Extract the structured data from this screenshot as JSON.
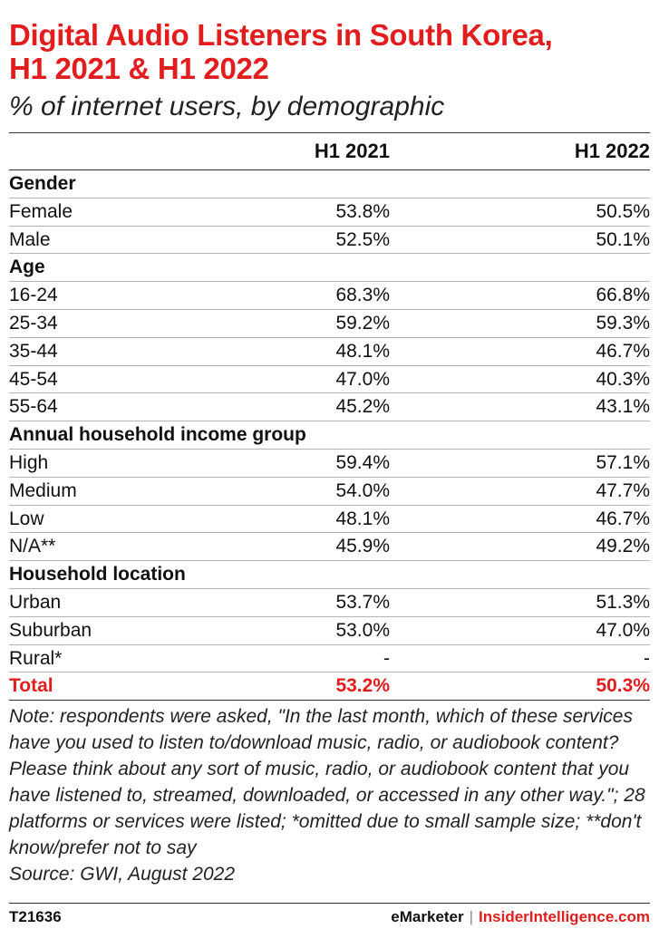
{
  "header": {
    "title_line1": "Digital Audio Listeners in South Korea,",
    "title_line2": "H1 2021 & H1 2022",
    "subtitle": "% of internet users, by demographic"
  },
  "colors": {
    "accent": "#e21d1d",
    "text": "#111111"
  },
  "chart_data": {
    "type": "table",
    "title": "Digital Audio Listeners in South Korea, H1 2021 & H1 2022",
    "subtitle": "% of internet users, by demographic",
    "columns": [
      "",
      "H1 2021",
      "H1 2022"
    ],
    "rows": [
      {
        "kind": "group",
        "label": "Gender"
      },
      {
        "kind": "row",
        "label": "Female",
        "h1_2021": "53.8%",
        "h1_2022": "50.5%"
      },
      {
        "kind": "row",
        "label": "Male",
        "h1_2021": "52.5%",
        "h1_2022": "50.1%"
      },
      {
        "kind": "group",
        "label": "Age"
      },
      {
        "kind": "row",
        "label": "16-24",
        "h1_2021": "68.3%",
        "h1_2022": "66.8%"
      },
      {
        "kind": "row",
        "label": "25-34",
        "h1_2021": "59.2%",
        "h1_2022": "59.3%"
      },
      {
        "kind": "row",
        "label": "35-44",
        "h1_2021": "48.1%",
        "h1_2022": "46.7%"
      },
      {
        "kind": "row",
        "label": "45-54",
        "h1_2021": "47.0%",
        "h1_2022": "40.3%"
      },
      {
        "kind": "row",
        "label": "55-64",
        "h1_2021": "45.2%",
        "h1_2022": "43.1%"
      },
      {
        "kind": "group",
        "label": "Annual household income group"
      },
      {
        "kind": "row",
        "label": "High",
        "h1_2021": "59.4%",
        "h1_2022": "57.1%"
      },
      {
        "kind": "row",
        "label": "Medium",
        "h1_2021": "54.0%",
        "h1_2022": "47.7%"
      },
      {
        "kind": "row",
        "label": "Low",
        "h1_2021": "48.1%",
        "h1_2022": "46.7%"
      },
      {
        "kind": "row",
        "label": "N/A**",
        "h1_2021": "45.9%",
        "h1_2022": "49.2%"
      },
      {
        "kind": "group",
        "label": "Household location"
      },
      {
        "kind": "row",
        "label": "Urban",
        "h1_2021": "53.7%",
        "h1_2022": "51.3%"
      },
      {
        "kind": "row",
        "label": "Suburban",
        "h1_2021": "53.0%",
        "h1_2022": "47.0%"
      },
      {
        "kind": "row",
        "label": "Rural*",
        "h1_2021": "-",
        "h1_2022": "-"
      },
      {
        "kind": "total",
        "label": "Total",
        "h1_2021": "53.2%",
        "h1_2022": "50.3%"
      }
    ]
  },
  "note": "Note: respondents were asked, \"In the last month, which of these services have you used to listen to/download music, radio, or audiobook content? Please think about any sort of music, radio, or audiobook content that you have listened to, streamed, downloaded, or accessed in any other way.\"; 28 platforms or services were listed; *omitted due to small sample size; **don't know/prefer not to say",
  "source": "Source: GWI, August 2022",
  "footer": {
    "chart_id": "T21636",
    "brand": "eMarketer",
    "separator": "|",
    "brand2": "InsiderIntelligence.com"
  }
}
